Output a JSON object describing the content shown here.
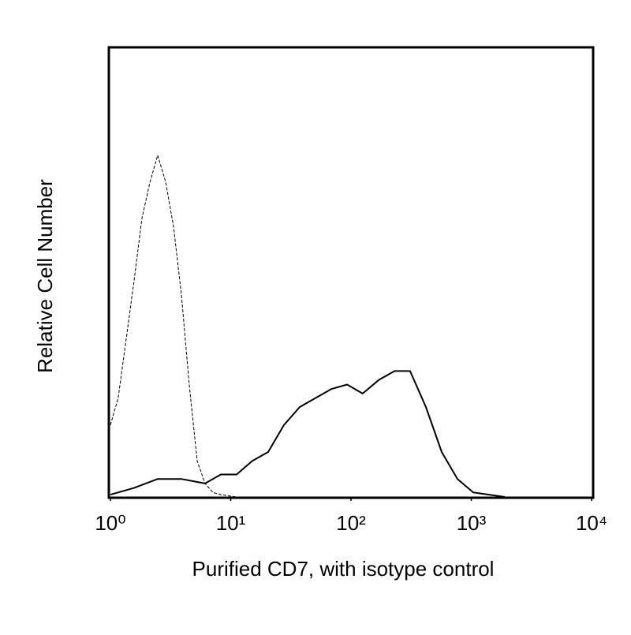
{
  "chart_data": {
    "type": "line",
    "xlabel": "Purified CD7, with isotype control",
    "ylabel": "Relative Cell Number",
    "xscale": "log",
    "xlim": [
      1,
      10000
    ],
    "xticks": [
      {
        "value": 1,
        "label": "10⁰"
      },
      {
        "value": 10,
        "label": "10¹"
      },
      {
        "value": 100,
        "label": "10²"
      },
      {
        "value": 1000,
        "label": "10³"
      },
      {
        "value": 10000,
        "label": "10⁴"
      }
    ],
    "ylim": [
      0,
      100
    ],
    "series": [
      {
        "color": "#000000",
        "style": "dashed",
        "width": 1,
        "x": [
          1,
          1.16,
          1.35,
          1.57,
          1.83,
          2.13,
          2.47,
          2.88,
          3.35,
          3.89,
          4.52,
          5.26,
          6.12,
          7.12,
          8.28,
          11.2
        ],
        "values": [
          16,
          22,
          35,
          48,
          62,
          70,
          76,
          70,
          60,
          45,
          25,
          8,
          3,
          1,
          0.5,
          0
        ]
      },
      {
        "color": "#000000",
        "style": "solid",
        "width": 2,
        "x": [
          1,
          1.57,
          2.47,
          3.89,
          6.12,
          8.28,
          11.2,
          15.1,
          20.5,
          27.7,
          37.5,
          50.7,
          68.6,
          92.8,
          125,
          170,
          230,
          310,
          420,
          568,
          768,
          1038,
          1405,
          1900
        ],
        "values": [
          0.5,
          2,
          4,
          4,
          3,
          5,
          5,
          8,
          10,
          16,
          20,
          22,
          24,
          25,
          23,
          26,
          28,
          28,
          20,
          10,
          4,
          1,
          0.5,
          0
        ]
      }
    ]
  }
}
